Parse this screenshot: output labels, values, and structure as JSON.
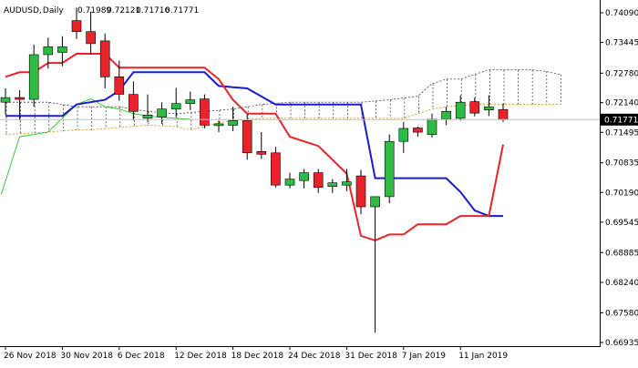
{
  "chart_data": {
    "type": "candlestick",
    "symbol": "AUDUSD",
    "timeframe": "Daily",
    "ohlc_values": [
      "0.71989",
      "0.72121",
      "0.71716",
      "0.71771"
    ],
    "last_price": 0.71771,
    "last_price_label": "0.71771",
    "y_ticks": [
      "0.74090",
      "0.73445",
      "0.72780",
      "0.72140",
      "0.71495",
      "0.70835",
      "0.70190",
      "0.69545",
      "0.68885",
      "0.68240",
      "0.67580",
      "0.66935"
    ],
    "y_range": [
      0.6663,
      0.7438
    ],
    "x_ticks": [
      {
        "label": "26 Nov 2018",
        "index": 0
      },
      {
        "label": "30 Nov 2018",
        "index": 4
      },
      {
        "label": "6 Dec 2018",
        "index": 8
      },
      {
        "label": "12 Dec 2018",
        "index": 12
      },
      {
        "label": "18 Dec 2018",
        "index": 16
      },
      {
        "label": "24 Dec 2018",
        "index": 20
      },
      {
        "label": "31 Dec 2018",
        "index": 24
      },
      {
        "label": "7 Jan 2019",
        "index": 28
      },
      {
        "label": "11 Jan 2019",
        "index": 32
      }
    ],
    "candles": [
      {
        "o": 0.7215,
        "h": 0.7245,
        "l": 0.7188,
        "c": 0.7225
      },
      {
        "o": 0.7225,
        "h": 0.7241,
        "l": 0.7175,
        "c": 0.7221
      },
      {
        "o": 0.7221,
        "h": 0.734,
        "l": 0.7205,
        "c": 0.7318
      },
      {
        "o": 0.7318,
        "h": 0.7355,
        "l": 0.7288,
        "c": 0.7335
      },
      {
        "o": 0.7323,
        "h": 0.7358,
        "l": 0.7293,
        "c": 0.7335
      },
      {
        "o": 0.7392,
        "h": 0.742,
        "l": 0.7352,
        "c": 0.7368
      },
      {
        "o": 0.7368,
        "h": 0.7412,
        "l": 0.7318,
        "c": 0.7342
      },
      {
        "o": 0.7348,
        "h": 0.7364,
        "l": 0.7245,
        "c": 0.727
      },
      {
        "o": 0.727,
        "h": 0.7305,
        "l": 0.7218,
        "c": 0.7232
      },
      {
        "o": 0.7232,
        "h": 0.726,
        "l": 0.7175,
        "c": 0.7195
      },
      {
        "o": 0.718,
        "h": 0.7232,
        "l": 0.7172,
        "c": 0.7187
      },
      {
        "o": 0.7183,
        "h": 0.7215,
        "l": 0.7168,
        "c": 0.72
      },
      {
        "o": 0.72,
        "h": 0.7246,
        "l": 0.7182,
        "c": 0.7212
      },
      {
        "o": 0.7212,
        "h": 0.7238,
        "l": 0.7198,
        "c": 0.722
      },
      {
        "o": 0.7222,
        "h": 0.7232,
        "l": 0.7158,
        "c": 0.7165
      },
      {
        "o": 0.7164,
        "h": 0.7175,
        "l": 0.715,
        "c": 0.7168
      },
      {
        "o": 0.7165,
        "h": 0.7205,
        "l": 0.7152,
        "c": 0.7175
      },
      {
        "o": 0.7175,
        "h": 0.7188,
        "l": 0.709,
        "c": 0.7105
      },
      {
        "o": 0.7108,
        "h": 0.715,
        "l": 0.7092,
        "c": 0.7102
      },
      {
        "o": 0.7105,
        "h": 0.7118,
        "l": 0.703,
        "c": 0.7035
      },
      {
        "o": 0.7035,
        "h": 0.7062,
        "l": 0.7028,
        "c": 0.7048
      },
      {
        "o": 0.7045,
        "h": 0.707,
        "l": 0.7028,
        "c": 0.7062
      },
      {
        "o": 0.7062,
        "h": 0.707,
        "l": 0.7018,
        "c": 0.703
      },
      {
        "o": 0.7032,
        "h": 0.7048,
        "l": 0.7018,
        "c": 0.704
      },
      {
        "o": 0.7035,
        "h": 0.707,
        "l": 0.7022,
        "c": 0.7042
      },
      {
        "o": 0.7055,
        "h": 0.7068,
        "l": 0.6972,
        "c": 0.6988
      },
      {
        "o": 0.6988,
        "h": 0.7005,
        "l": 0.6715,
        "c": 0.701
      },
      {
        "o": 0.701,
        "h": 0.7145,
        "l": 0.6996,
        "c": 0.713
      },
      {
        "o": 0.713,
        "h": 0.7172,
        "l": 0.7105,
        "c": 0.7158
      },
      {
        "o": 0.7159,
        "h": 0.7162,
        "l": 0.714,
        "c": 0.715
      },
      {
        "o": 0.7145,
        "h": 0.719,
        "l": 0.7138,
        "c": 0.7178
      },
      {
        "o": 0.7178,
        "h": 0.7205,
        "l": 0.7165,
        "c": 0.7195
      },
      {
        "o": 0.718,
        "h": 0.723,
        "l": 0.7175,
        "c": 0.7215
      },
      {
        "o": 0.7216,
        "h": 0.7225,
        "l": 0.7184,
        "c": 0.7191
      },
      {
        "o": 0.7198,
        "h": 0.723,
        "l": 0.7185,
        "c": 0.7205
      },
      {
        "o": 0.7199,
        "h": 0.7212,
        "l": 0.7172,
        "c": 0.7177
      }
    ],
    "red_line": [
      [
        0,
        0.727
      ],
      [
        1,
        0.728
      ],
      [
        2,
        0.728
      ],
      [
        3,
        0.73
      ],
      [
        4,
        0.73
      ],
      [
        5,
        0.732
      ],
      [
        7,
        0.732
      ],
      [
        8,
        0.729
      ],
      [
        10,
        0.729
      ],
      [
        14,
        0.729
      ],
      [
        15,
        0.7265
      ],
      [
        16,
        0.722
      ],
      [
        17,
        0.719
      ],
      [
        19,
        0.719
      ],
      [
        20,
        0.714
      ],
      [
        22,
        0.712
      ],
      [
        23,
        0.709
      ],
      [
        24,
        0.706
      ],
      [
        25,
        0.6925
      ],
      [
        26,
        0.6915
      ],
      [
        27,
        0.6928
      ],
      [
        28,
        0.6928
      ],
      [
        29,
        0.695
      ],
      [
        31,
        0.695
      ],
      [
        32,
        0.6968
      ],
      [
        34,
        0.6968
      ],
      [
        35,
        0.7123
      ]
    ],
    "blue_line": [
      [
        0,
        0.7185
      ],
      [
        4,
        0.7185
      ],
      [
        5,
        0.721
      ],
      [
        7,
        0.722
      ],
      [
        8,
        0.724
      ],
      [
        9,
        0.728
      ],
      [
        14,
        0.728
      ],
      [
        15,
        0.725
      ],
      [
        17,
        0.7245
      ],
      [
        19,
        0.721
      ],
      [
        25,
        0.721
      ],
      [
        26,
        0.705
      ],
      [
        31,
        0.705
      ],
      [
        32,
        0.702
      ],
      [
        33,
        0.698
      ],
      [
        34,
        0.6968
      ],
      [
        35,
        0.6968
      ]
    ],
    "green_line": [
      [
        -0.3,
        0.7015
      ],
      [
        1,
        0.714
      ],
      [
        2,
        0.7145
      ],
      [
        3,
        0.715
      ],
      [
        4,
        0.718
      ],
      [
        5,
        0.721
      ],
      [
        6,
        0.7222
      ],
      [
        7,
        0.7205
      ],
      [
        8,
        0.72
      ],
      [
        9,
        0.719
      ],
      [
        10,
        0.7185
      ],
      [
        11,
        0.7182
      ],
      [
        12,
        0.718
      ],
      [
        13,
        0.7178
      ]
    ],
    "cloud_upper": [
      [
        0,
        0.7215
      ],
      [
        3,
        0.7215
      ],
      [
        5,
        0.7205
      ],
      [
        8,
        0.7205
      ],
      [
        10,
        0.7195
      ],
      [
        12,
        0.719
      ],
      [
        14,
        0.7195
      ],
      [
        16,
        0.72
      ],
      [
        18,
        0.721
      ],
      [
        20,
        0.7215
      ],
      [
        25,
        0.7215
      ],
      [
        27,
        0.722
      ],
      [
        29,
        0.7228
      ],
      [
        30,
        0.7255
      ],
      [
        31,
        0.7265
      ],
      [
        32,
        0.7265
      ],
      [
        33,
        0.7275
      ],
      [
        34,
        0.7285
      ],
      [
        37,
        0.7285
      ],
      [
        38,
        0.7282
      ],
      [
        39,
        0.7275
      ]
    ],
    "cloud_lower": [
      [
        0,
        0.7145
      ],
      [
        3,
        0.715
      ],
      [
        5,
        0.7155
      ],
      [
        6,
        0.7155
      ],
      [
        8,
        0.716
      ],
      [
        10,
        0.7165
      ],
      [
        12,
        0.7162
      ],
      [
        13,
        0.7155
      ],
      [
        14,
        0.7162
      ],
      [
        15,
        0.717
      ],
      [
        16,
        0.7175
      ],
      [
        18,
        0.718
      ],
      [
        20,
        0.718
      ],
      [
        25,
        0.718
      ],
      [
        28,
        0.718
      ],
      [
        30,
        0.72
      ],
      [
        31,
        0.7205
      ],
      [
        33,
        0.721
      ],
      [
        39,
        0.721
      ]
    ],
    "colors": {
      "bull": "#2dbb43",
      "bear": "#e8232a",
      "red_line": "#e8232a",
      "blue_line": "#1a1ad0",
      "green_line": "#3cc73c",
      "cloud_upper": "#444444",
      "cloud_lower": "#d8860b",
      "price_tag_bg": "#000000",
      "price_tag_text": "#ffffff"
    }
  }
}
